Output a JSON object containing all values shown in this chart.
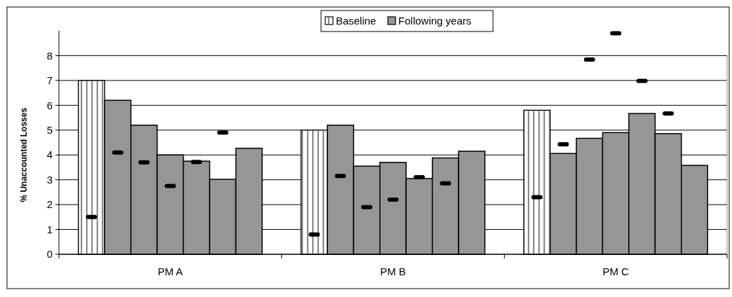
{
  "chart_data": {
    "type": "bar",
    "ylabel": "% Unaccounted Losses",
    "categories": [
      "PM A",
      "PM B",
      "PM C"
    ],
    "series": [
      {
        "name": "Baseline",
        "color": "#ffffff",
        "values": [
          7.0,
          5.0,
          5.8
        ]
      },
      {
        "name": "Following years",
        "color": "#969696",
        "values": [
          6.2,
          5.2,
          4.06
        ]
      },
      {
        "color": "#969696",
        "values": [
          5.2,
          3.55,
          4.67
        ]
      },
      {
        "color": "#969696",
        "values": [
          4.0,
          3.7,
          4.9
        ]
      },
      {
        "color": "#969696",
        "values": [
          3.75,
          3.05,
          5.67
        ]
      },
      {
        "color": "#969696",
        "values": [
          3.02,
          3.88,
          4.86
        ]
      },
      {
        "color": "#969696",
        "values": [
          4.27,
          4.15,
          3.58
        ]
      },
      {
        "type": "scatter",
        "color": "#000000",
        "values": [
          1.5,
          0.8,
          2.3
        ]
      },
      {
        "type": "scatter",
        "color": "#000000",
        "values": [
          4.1,
          3.15,
          4.43
        ]
      },
      {
        "type": "scatter",
        "color": "#000000",
        "values": [
          3.7,
          1.9,
          7.84
        ]
      },
      {
        "type": "scatter",
        "color": "#000000",
        "values": [
          2.75,
          2.2,
          8.9
        ]
      },
      {
        "type": "scatter",
        "color": "#000000",
        "values": [
          3.72,
          3.1,
          6.98
        ]
      },
      {
        "type": "scatter",
        "color": "#000000",
        "values": [
          4.9,
          2.86,
          5.67
        ]
      }
    ],
    "ylim": [
      0,
      9
    ],
    "yticks": [
      0,
      1,
      2,
      3,
      4,
      5,
      6,
      7,
      8
    ],
    "grid": "y",
    "legend": "top"
  }
}
